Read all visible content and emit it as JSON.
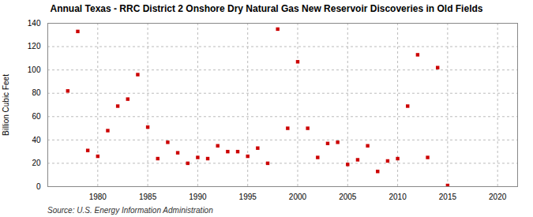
{
  "chart_data": {
    "type": "scatter",
    "title": "Annual Texas - RRC District 2 Onshore Dry Natural Gas New Reservoir Discoveries in Old Fields",
    "ylabel": "Billion Cubic Feet",
    "annotations": [
      "Source: U.S. Energy Information Administration"
    ],
    "x": [
      1977,
      1978,
      1979,
      1980,
      1981,
      1982,
      1983,
      1984,
      1985,
      1986,
      1987,
      1988,
      1989,
      1990,
      1991,
      1992,
      1993,
      1994,
      1995,
      1996,
      1997,
      1998,
      1999,
      2000,
      2001,
      2002,
      2003,
      2004,
      2005,
      2006,
      2007,
      2008,
      2009,
      2010,
      2011,
      2012,
      2013,
      2014,
      2015
    ],
    "values": [
      82,
      133,
      31,
      26,
      48,
      69,
      75,
      96,
      51,
      24,
      38,
      29,
      20,
      25,
      24,
      35,
      30,
      30,
      26,
      33,
      20,
      135,
      50,
      107,
      50,
      25,
      37,
      38,
      19,
      23,
      35,
      13,
      22,
      24,
      69,
      113,
      25,
      102,
      1
    ],
    "color": "#cc0000",
    "marker": "square",
    "xlim": [
      1975,
      2022
    ],
    "ylim": [
      0,
      140
    ],
    "xticks": [
      1980,
      1985,
      1990,
      1995,
      2000,
      2005,
      2010,
      2015,
      2020
    ],
    "yticks": [
      0,
      20,
      40,
      60,
      80,
      100,
      120,
      140
    ],
    "grid": true
  }
}
